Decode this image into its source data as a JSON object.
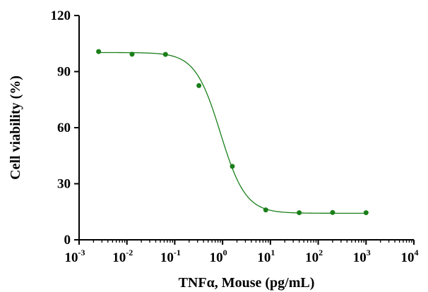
{
  "chart_data": {
    "type": "scatter",
    "xlabel": "TNFα, Mouse (pg/mL)",
    "ylabel": "Cell viability (%)",
    "x_scale": "log10",
    "xlim": [
      0.001,
      10000
    ],
    "ylim": [
      0,
      120
    ],
    "x_ticks": [
      {
        "base": "10",
        "exp": "-3"
      },
      {
        "base": "10",
        "exp": "-2"
      },
      {
        "base": "10",
        "exp": "-1"
      },
      {
        "base": "10",
        "exp": "0"
      },
      {
        "base": "10",
        "exp": "1"
      },
      {
        "base": "10",
        "exp": "2"
      },
      {
        "base": "10",
        "exp": "3"
      },
      {
        "base": "10",
        "exp": "4"
      }
    ],
    "y_ticks": [
      0,
      30,
      60,
      90,
      120
    ],
    "grid": false,
    "legend": "none",
    "color": "#1a7f1a",
    "series": [
      {
        "points": [
          {
            "x": 0.00256,
            "y": 100.7
          },
          {
            "x": 0.0128,
            "y": 99.3
          },
          {
            "x": 0.064,
            "y": 99.2
          },
          {
            "x": 0.32,
            "y": 82.5
          },
          {
            "x": 1.6,
            "y": 39.3
          },
          {
            "x": 8,
            "y": 16.0
          },
          {
            "x": 40,
            "y": 14.5
          },
          {
            "x": 200,
            "y": 14.6
          },
          {
            "x": 1000,
            "y": 14.5
          }
        ],
        "fit": {
          "model": "four-parameter logistic",
          "top": 100.2,
          "bottom": 14.2,
          "ec50": 0.9,
          "hill": 1.65
        }
      }
    ]
  }
}
